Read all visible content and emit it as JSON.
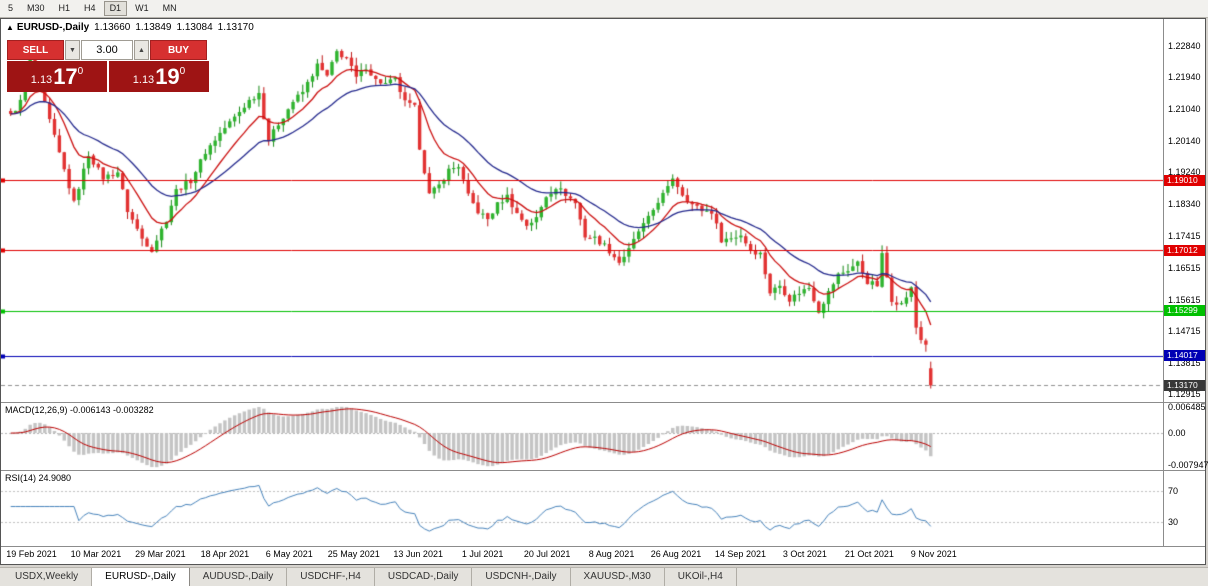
{
  "toolbar": {
    "timeframes": [
      {
        "label": "5",
        "active": false
      },
      {
        "label": "M30",
        "active": false
      },
      {
        "label": "H1",
        "active": false
      },
      {
        "label": "H4",
        "active": false
      },
      {
        "label": "D1",
        "active": true
      },
      {
        "label": "W1",
        "active": false
      },
      {
        "label": "MN",
        "active": false
      }
    ]
  },
  "chart": {
    "header": {
      "collapse_icon": "▲",
      "title": "EURUSD-,Daily",
      "open": "1.13660",
      "high": "1.13849",
      "low": "1.13084",
      "close": "1.13170"
    },
    "trade_panel": {
      "sell_label": "SELL",
      "buy_label": "BUY",
      "volume": "3.00",
      "volume_down_icon": "▼",
      "volume_up_icon": "▲",
      "sell_price": {
        "base": "1.13",
        "pips": "17",
        "pipette": "0"
      },
      "buy_price": {
        "base": "1.13",
        "pips": "19",
        "pipette": "0"
      }
    },
    "price_axis": [
      "1.22840",
      "1.21940",
      "1.21040",
      "1.20140",
      "1.19240",
      "1.18340",
      "1.17415",
      "1.16515",
      "1.15615",
      "1.14715",
      "1.13815",
      "1.12915"
    ],
    "levels": [
      {
        "price": 1.1901,
        "label": "1.19010",
        "color": "#e00000",
        "style": "line"
      },
      {
        "price": 1.17012,
        "label": "1.17012",
        "color": "#e00000",
        "style": "line"
      },
      {
        "price": 1.15299,
        "label": "1.15299",
        "color": "#00c000",
        "style": "line"
      },
      {
        "price": 1.14017,
        "label": "1.14017",
        "color": "#0000b4",
        "style": "line"
      },
      {
        "price": 1.1317,
        "label": "1.13170",
        "color": "#383838",
        "style": "current"
      }
    ],
    "date_axis": [
      "19 Feb 2021",
      "10 Mar 2021",
      "29 Mar 2021",
      "18 Apr 2021",
      "6 May 2021",
      "25 May 2021",
      "13 Jun 2021",
      "1 Jul 2021",
      "20 Jul 2021",
      "8 Aug 2021",
      "26 Aug 2021",
      "14 Sep 2021",
      "3 Oct 2021",
      "21 Oct 2021",
      "9 Nov 2021"
    ]
  },
  "macd": {
    "label": "MACD(12,26,9) -0.006143 -0.003282",
    "axis_top": "0.006485",
    "axis_zero": "0.00",
    "axis_bottom": "-0.007947"
  },
  "rsi": {
    "label": "RSI(14) 24.9080",
    "axis_upper": "70",
    "axis_lower": "30"
  },
  "tabs": [
    {
      "label": "USDX,Weekly",
      "active": false
    },
    {
      "label": "EURUSD-,Daily",
      "active": true
    },
    {
      "label": "AUDUSD-,Daily",
      "active": false
    },
    {
      "label": "USDCHF-,H4",
      "active": false
    },
    {
      "label": "USDCAD-,Daily",
      "active": false
    },
    {
      "label": "USDCNH-,Daily",
      "active": false
    },
    {
      "label": "XAUUSD-,M30",
      "active": false
    },
    {
      "label": "UKOil-,H4",
      "active": false
    }
  ],
  "chart_data": {
    "type": "candlestick",
    "symbol": "EURUSD-",
    "timeframe": "Daily",
    "bars": 190,
    "price_range": [
      1.127,
      1.236
    ],
    "anchors": [
      [
        0,
        1.2085
      ],
      [
        2,
        1.2125
      ],
      [
        4,
        1.2243
      ],
      [
        6,
        1.2165
      ],
      [
        8,
        1.207
      ],
      [
        11,
        1.193
      ],
      [
        13,
        1.1836
      ],
      [
        16,
        1.1975
      ],
      [
        19,
        1.1908
      ],
      [
        22,
        1.1925
      ],
      [
        24,
        1.1815
      ],
      [
        27,
        1.1735
      ],
      [
        29,
        1.1704
      ],
      [
        32,
        1.179
      ],
      [
        34,
        1.1872
      ],
      [
        37,
        1.19
      ],
      [
        40,
        1.1982
      ],
      [
        43,
        1.2035
      ],
      [
        46,
        1.208
      ],
      [
        49,
        1.2128
      ],
      [
        51,
        1.215
      ],
      [
        53,
        1.2015
      ],
      [
        55,
        1.2062
      ],
      [
        58,
        1.2125
      ],
      [
        60,
        1.2152
      ],
      [
        63,
        1.2228
      ],
      [
        65,
        1.2196
      ],
      [
        67,
        1.2266
      ],
      [
        69,
        1.2248
      ],
      [
        71,
        1.2192
      ],
      [
        73,
        1.2224
      ],
      [
        75,
        1.2186
      ],
      [
        77,
        1.2175
      ],
      [
        79,
        1.2188
      ],
      [
        81,
        1.2122
      ],
      [
        83,
        1.2108
      ],
      [
        84,
        1.1996
      ],
      [
        86,
        1.186
      ],
      [
        88,
        1.1886
      ],
      [
        90,
        1.193
      ],
      [
        92,
        1.1942
      ],
      [
        94,
        1.1856
      ],
      [
        96,
        1.1812
      ],
      [
        98,
        1.179
      ],
      [
        100,
        1.1832
      ],
      [
        102,
        1.1856
      ],
      [
        104,
        1.1806
      ],
      [
        106,
        1.1774
      ],
      [
        108,
        1.1792
      ],
      [
        110,
        1.1856
      ],
      [
        112,
        1.1882
      ],
      [
        114,
        1.1862
      ],
      [
        116,
        1.1836
      ],
      [
        118,
        1.1742
      ],
      [
        120,
        1.1736
      ],
      [
        122,
        1.1716
      ],
      [
        125,
        1.1668
      ],
      [
        127,
        1.1702
      ],
      [
        129,
        1.1756
      ],
      [
        131,
        1.1792
      ],
      [
        133,
        1.1842
      ],
      [
        135,
        1.1878
      ],
      [
        136,
        1.1909
      ],
      [
        138,
        1.1862
      ],
      [
        140,
        1.1832
      ],
      [
        142,
        1.1816
      ],
      [
        144,
        1.1812
      ],
      [
        146,
        1.1732
      ],
      [
        148,
        1.1736
      ],
      [
        150,
        1.1746
      ],
      [
        152,
        1.1702
      ],
      [
        154,
        1.1692
      ],
      [
        156,
        1.1582
      ],
      [
        158,
        1.1602
      ],
      [
        160,
        1.1562
      ],
      [
        162,
        1.1582
      ],
      [
        164,
        1.1596
      ],
      [
        166,
        1.153
      ],
      [
        168,
        1.1582
      ],
      [
        170,
        1.1632
      ],
      [
        172,
        1.1646
      ],
      [
        174,
        1.1666
      ],
      [
        176,
        1.1612
      ],
      [
        178,
        1.1602
      ],
      [
        179,
        1.1688
      ],
      [
        181,
        1.1562
      ],
      [
        183,
        1.1548
      ],
      [
        185,
        1.1592
      ],
      [
        186,
        1.1482
      ],
      [
        187,
        1.1448
      ],
      [
        188,
        1.1436
      ],
      [
        189,
        1.1317
      ]
    ],
    "last_candle": {
      "o": 1.1366,
      "h": 1.13849,
      "l": 1.13084,
      "c": 1.1317
    },
    "moving_averages": [
      {
        "period": 10,
        "color": "#cc1111"
      },
      {
        "period": 24,
        "color": "#252a8e"
      }
    ],
    "candle_colors": {
      "up_fill": "#2fb42f",
      "up_stroke": "#168a16",
      "down_fill": "#e23232",
      "down_stroke": "#c01818"
    },
    "macd": {
      "fast": 12,
      "slow": 26,
      "signal": 9,
      "current": -0.006143,
      "signal_current": -0.003282,
      "axis_range": [
        -0.007947,
        0.006485
      ],
      "histogram_color": "#c4c4c4",
      "signal_color": "#bb0000"
    },
    "rsi": {
      "period": 14,
      "current": 24.908,
      "levels": [
        30,
        70
      ],
      "line_color": "#4884bc"
    }
  }
}
